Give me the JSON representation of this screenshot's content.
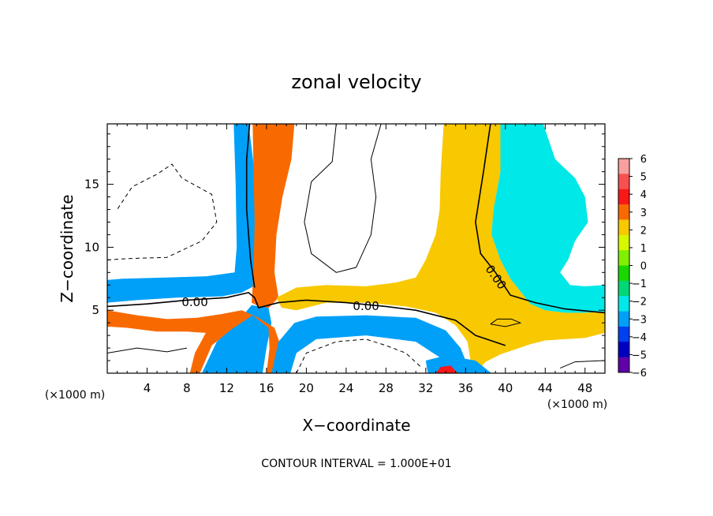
{
  "chart_data": {
    "type": "heatmap",
    "title": "zonal velocity",
    "xlabel": "X−coordinate",
    "ylabel": "Z−coordinate",
    "x_unit_left": "(×1000 m)",
    "x_unit_right": "(×1000 m)",
    "footnote": "CONTOUR INTERVAL = 1.000E+01",
    "xlim": [
      0,
      50
    ],
    "ylim": [
      0,
      19.8
    ],
    "x_ticks": [
      4,
      8,
      12,
      16,
      20,
      24,
      28,
      32,
      36,
      40,
      44,
      48
    ],
    "y_ticks": [
      5,
      10,
      15
    ],
    "x_tick_labels": [
      "4",
      "8",
      "12",
      "16",
      "20",
      "24",
      "28",
      "32",
      "36",
      "40",
      "44",
      "48"
    ],
    "y_tick_labels": [
      "5",
      "10",
      "15"
    ],
    "colorbar": {
      "levels": [
        6,
        5,
        4,
        3,
        2,
        1,
        0,
        -1,
        -2,
        -3,
        -4,
        -5,
        -6
      ],
      "labels": [
        "6",
        "5",
        "4",
        "3",
        "2",
        "1",
        "0",
        "−1",
        "−2",
        "−3",
        "−4",
        "−5",
        "−6"
      ],
      "colors": [
        "#f8a0a0",
        "#f85050",
        "#f81818",
        "#f86a00",
        "#f8c800",
        "#d8f800",
        "#80f000",
        "#18d800",
        "#00d878",
        "#00e8e8",
        "#00a0f8",
        "#0040f0",
        "#0000c0",
        "#6000a8"
      ]
    },
    "contour_labels": [
      {
        "text": "0.00",
        "x": 8.8,
        "y": 5.6
      },
      {
        "text": "0.00",
        "x": 26.0,
        "y": 5.3
      },
      {
        "text": "0.00",
        "x": 39.0,
        "y": 7.6,
        "angle": 55
      }
    ],
    "regions": [
      {
        "name": "neg-plume-left",
        "value": -4,
        "poly": [
          [
            10.6,
            19.8
          ],
          [
            12.7,
            19.8
          ],
          [
            12.9,
            15
          ],
          [
            13.0,
            10
          ],
          [
            12.8,
            8
          ],
          [
            10,
            7.7
          ],
          [
            6,
            7.6
          ],
          [
            1.5,
            7.5
          ],
          [
            0,
            7.4
          ],
          [
            0,
            5.6
          ],
          [
            3,
            5.8
          ],
          [
            7,
            6.0
          ],
          [
            11.5,
            6.1
          ],
          [
            13.5,
            6.4
          ],
          [
            14.7,
            6.9
          ],
          [
            15.0,
            9
          ],
          [
            15.0,
            13
          ],
          [
            14.8,
            16
          ],
          [
            14.2,
            19.8
          ]
        ]
      },
      {
        "name": "pos-plume-left",
        "value": 3,
        "poly": [
          [
            15.0,
            19.8
          ],
          [
            18.8,
            19.8
          ],
          [
            18.5,
            17
          ],
          [
            17.6,
            14
          ],
          [
            17.0,
            11
          ],
          [
            16.8,
            8
          ],
          [
            17.2,
            6
          ],
          [
            16.0,
            5.0
          ],
          [
            14.5,
            5.6
          ],
          [
            14.7,
            8
          ],
          [
            14.8,
            12
          ],
          [
            14.7,
            16
          ],
          [
            14.6,
            19.8
          ]
        ]
      },
      {
        "name": "neg-lower-left",
        "value": -4,
        "poly": [
          [
            9.5,
            0
          ],
          [
            11.0,
            2.5
          ],
          [
            13.0,
            4.0
          ],
          [
            14.5,
            5.4
          ],
          [
            16.2,
            5.2
          ],
          [
            16.5,
            4.0
          ],
          [
            16.0,
            2.0
          ],
          [
            15.6,
            0
          ]
        ]
      },
      {
        "name": "pos-lower-band",
        "value": 3,
        "poly": [
          [
            0,
            5.0
          ],
          [
            3,
            4.6
          ],
          [
            6,
            4.3
          ],
          [
            9,
            4.4
          ],
          [
            11.5,
            4.7
          ],
          [
            13.5,
            5.0
          ],
          [
            15.2,
            4.4
          ],
          [
            16.8,
            3.6
          ],
          [
            17.5,
            2
          ],
          [
            18.2,
            0
          ],
          [
            16.0,
            0
          ],
          [
            16.3,
            2
          ],
          [
            16.2,
            3.6
          ],
          [
            14.6,
            4.6
          ],
          [
            12.5,
            3.5
          ],
          [
            10.5,
            2.2
          ],
          [
            9.3,
            0
          ],
          [
            8.3,
            0
          ],
          [
            8.8,
            1.6
          ],
          [
            9.9,
            3.2
          ],
          [
            8,
            3.3
          ],
          [
            5,
            3.3
          ],
          [
            2,
            3.6
          ],
          [
            0,
            3.7
          ]
        ]
      },
      {
        "name": "neg-lower-mid",
        "value": -4,
        "poly": [
          [
            16.5,
            0
          ],
          [
            17.2,
            2.5
          ],
          [
            18.8,
            4.0
          ],
          [
            21,
            4.5
          ],
          [
            26,
            4.6
          ],
          [
            31,
            4.4
          ],
          [
            34,
            3.4
          ],
          [
            35.5,
            2
          ],
          [
            36.5,
            0
          ],
          [
            34.2,
            0
          ],
          [
            33.5,
            1.2
          ],
          [
            31,
            2.5
          ],
          [
            26,
            3.0
          ],
          [
            21,
            2.7
          ],
          [
            19.0,
            1.6
          ],
          [
            18.4,
            0
          ]
        ]
      },
      {
        "name": "pos-central-band",
        "value": 2,
        "poly": [
          [
            17.0,
            6.0
          ],
          [
            19,
            6.8
          ],
          [
            22,
            7.0
          ],
          [
            26,
            6.9
          ],
          [
            29,
            7.2
          ],
          [
            31,
            7.6
          ],
          [
            32.0,
            9
          ],
          [
            33.0,
            11
          ],
          [
            33.4,
            13
          ],
          [
            33.5,
            16
          ],
          [
            33.8,
            19.8
          ],
          [
            40.0,
            19.8
          ],
          [
            39.5,
            16
          ],
          [
            38.8,
            13
          ],
          [
            38.6,
            11
          ],
          [
            39.5,
            9
          ],
          [
            40.5,
            7.5
          ],
          [
            42.5,
            5.5
          ],
          [
            44,
            5.0
          ],
          [
            46,
            4.8
          ],
          [
            48,
            4.8
          ],
          [
            50,
            4.9
          ],
          [
            50,
            3.2
          ],
          [
            48,
            2.8
          ],
          [
            46,
            2.7
          ],
          [
            44,
            2.6
          ],
          [
            42.5,
            2.3
          ],
          [
            41,
            1.9
          ],
          [
            39.5,
            1.5
          ],
          [
            38,
            0.9
          ],
          [
            37.0,
            0
          ],
          [
            36.4,
            0
          ],
          [
            36.5,
            1
          ],
          [
            36.2,
            2.5
          ],
          [
            35,
            3.8
          ],
          [
            33,
            4.8
          ],
          [
            30,
            5.3
          ],
          [
            26,
            5.6
          ],
          [
            22,
            5.6
          ],
          [
            19,
            5.0
          ],
          [
            17.5,
            5.2
          ]
        ]
      },
      {
        "name": "neg-plume-right",
        "value": -3,
        "poly": [
          [
            39.5,
            19.8
          ],
          [
            43.8,
            19.8
          ],
          [
            45.0,
            17
          ],
          [
            47.0,
            15.5
          ],
          [
            48.0,
            14
          ],
          [
            48.3,
            12
          ],
          [
            47.0,
            10.5
          ],
          [
            46.3,
            9
          ],
          [
            45.5,
            8
          ],
          [
            46.5,
            7.0
          ],
          [
            48,
            6.9
          ],
          [
            50,
            7.0
          ],
          [
            50,
            4.9
          ],
          [
            48,
            4.8
          ],
          [
            46,
            4.8
          ],
          [
            44,
            5.0
          ],
          [
            42.5,
            5.5
          ],
          [
            40.5,
            7.5
          ],
          [
            39.5,
            9
          ],
          [
            38.6,
            11
          ],
          [
            38.8,
            13
          ],
          [
            39.5,
            16
          ]
        ]
      },
      {
        "name": "neg-bottom-right",
        "value": -4,
        "poly": [
          [
            32.2,
            0
          ],
          [
            32.0,
            1.0
          ],
          [
            33.0,
            1.2
          ],
          [
            34.0,
            1.4
          ],
          [
            35.5,
            1.2
          ],
          [
            37,
            1.0
          ],
          [
            38.6,
            0
          ]
        ]
      },
      {
        "name": "pos-blob-bottom",
        "value": 4,
        "poly": [
          [
            33.0,
            0
          ],
          [
            33.5,
            0.5
          ],
          [
            34.5,
            0.6
          ],
          [
            35.2,
            0
          ]
        ]
      }
    ]
  }
}
